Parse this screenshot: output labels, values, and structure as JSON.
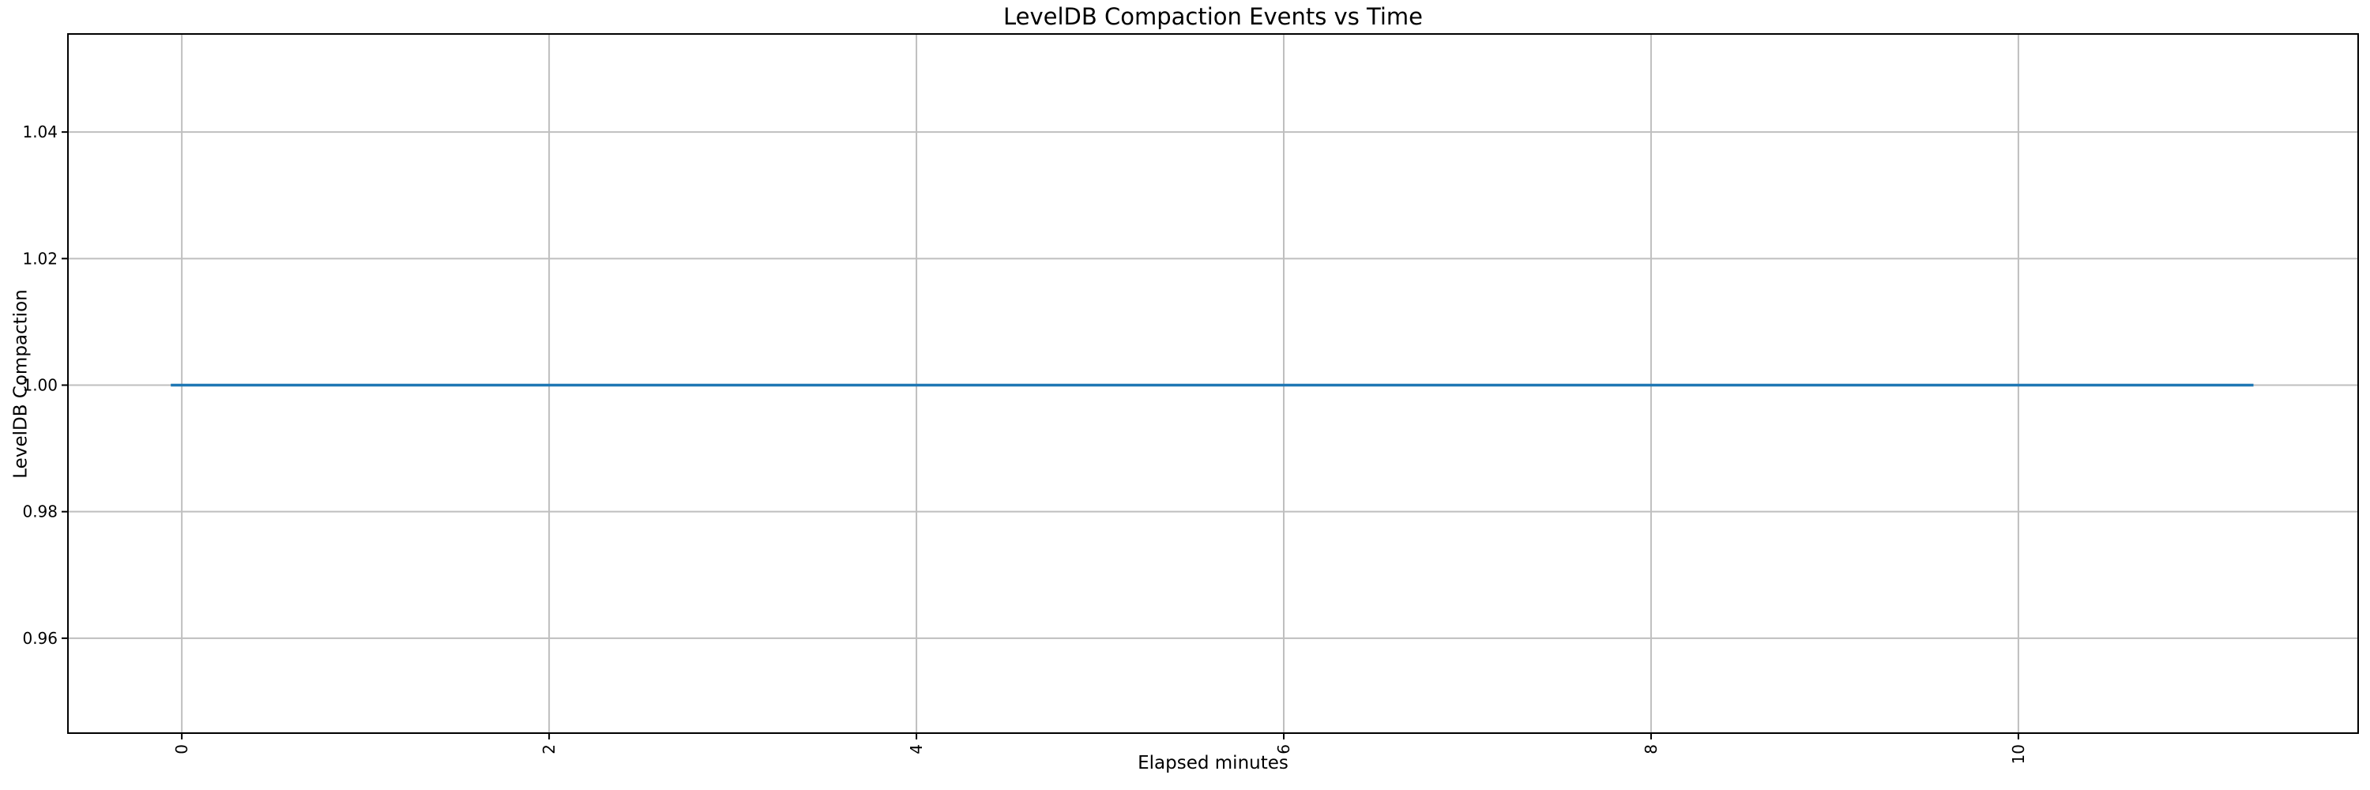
{
  "chart_data": {
    "type": "line",
    "title": "LevelDB Compaction Events vs Time",
    "xlabel": "Elapsed minutes",
    "ylabel": "LevelDB Compaction",
    "series": [
      {
        "name": "LevelDB Compaction",
        "color": "#1f77b4",
        "points": [
          [
            -0.06,
            1.0
          ],
          [
            11.28,
            1.0
          ]
        ]
      }
    ],
    "xlim": [
      -0.62,
      11.85
    ],
    "ylim": [
      0.945,
      1.0555
    ],
    "xticks": {
      "values": [
        0,
        2,
        4,
        6,
        8,
        10
      ],
      "labels": [
        "0",
        "2",
        "4",
        "6",
        "8",
        "10"
      ],
      "rotation": 90
    },
    "yticks": {
      "values": [
        0.96,
        0.98,
        1.0,
        1.02,
        1.04
      ],
      "labels": [
        "0.96",
        "0.98",
        "1.00",
        "1.02",
        "1.04"
      ]
    },
    "grid": true,
    "colors": {
      "grid": "#bfbfbf",
      "axis": "#000000",
      "text": "#000000",
      "background": "#ffffff"
    }
  }
}
